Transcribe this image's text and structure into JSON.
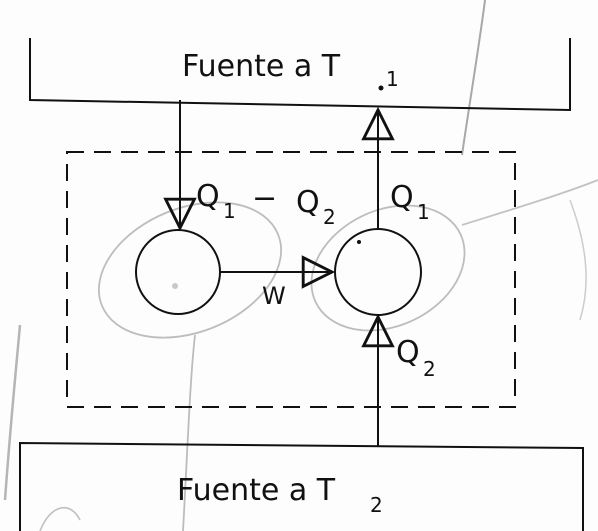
{
  "diagram": {
    "source_top": {
      "text": "Fuente a T",
      "subscript": "1"
    },
    "source_bottom": {
      "text": "Fuente a T",
      "subscript": "2"
    },
    "flow_left": {
      "q1": "Q",
      "q1_sub": "1",
      "minus": "−",
      "q2": "Q",
      "q2_sub": "2"
    },
    "flow_right_top": {
      "text": "Q",
      "subscript": "1"
    },
    "flow_right_bottom": {
      "text": "Q",
      "subscript": "2"
    },
    "work": {
      "text": "W"
    }
  },
  "colors": {
    "ink": "#111111",
    "pencil": "#b8b8b8"
  }
}
